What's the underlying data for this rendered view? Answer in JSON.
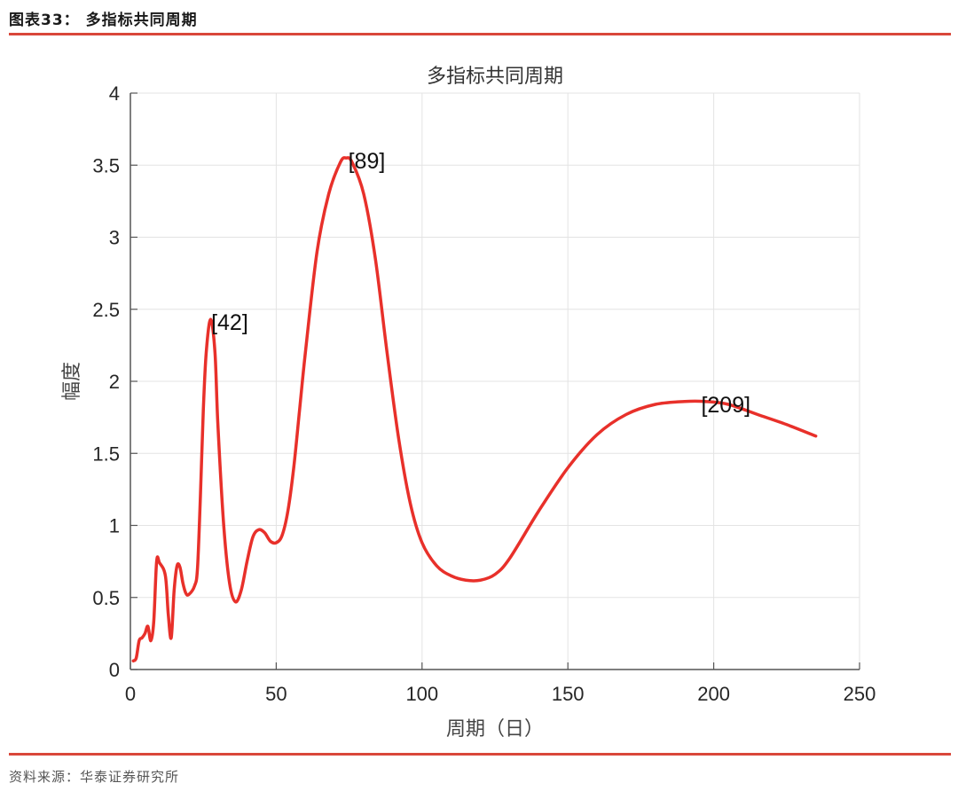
{
  "header": {
    "figure_label": "图表33：  多指标共同周期"
  },
  "footer": {
    "source": "资料来源：华泰证券研究所"
  },
  "colors": {
    "accent_rule": "#d9473a",
    "series": "#e8302a",
    "grid": "#e3e3e3",
    "axis": "#555555"
  },
  "chart_data": {
    "type": "line",
    "title": "多指标共同周期",
    "xlabel": "周期（日）",
    "ylabel": "幅度",
    "xlim": [
      0,
      250
    ],
    "ylim": [
      0,
      4
    ],
    "xticks": [
      0,
      50,
      100,
      150,
      200,
      250
    ],
    "yticks": [
      0,
      0.5,
      1,
      1.5,
      2,
      2.5,
      3,
      3.5,
      4
    ],
    "ytick_labels": [
      "0",
      "0.5",
      "1",
      "1.5",
      "2",
      "2.5",
      "3",
      "3.5",
      "4"
    ],
    "grid": true,
    "legend": null,
    "series": [
      {
        "name": "幅度",
        "color": "#e8302a",
        "x": [
          1,
          2,
          3,
          4,
          5,
          6,
          7,
          8,
          9,
          10,
          12,
          13,
          14,
          15,
          16,
          17,
          18,
          19,
          20,
          22,
          23,
          24,
          25,
          26,
          27.5,
          29,
          30,
          32,
          34,
          36,
          38,
          40,
          42,
          44,
          46,
          48,
          50,
          52,
          54,
          56,
          58,
          60,
          64,
          68,
          72,
          74,
          76,
          80,
          84,
          88,
          92,
          96,
          100,
          105,
          110,
          115,
          120,
          125,
          130,
          140,
          150,
          160,
          170,
          180,
          190,
          197,
          205,
          215,
          225,
          235
        ],
        "values": [
          0.06,
          0.08,
          0.2,
          0.22,
          0.25,
          0.3,
          0.2,
          0.33,
          0.75,
          0.74,
          0.65,
          0.38,
          0.22,
          0.55,
          0.72,
          0.71,
          0.6,
          0.53,
          0.52,
          0.58,
          0.7,
          1.2,
          1.8,
          2.2,
          2.43,
          2.2,
          1.7,
          1.0,
          0.6,
          0.47,
          0.55,
          0.75,
          0.92,
          0.97,
          0.95,
          0.89,
          0.88,
          0.93,
          1.1,
          1.4,
          1.8,
          2.2,
          2.9,
          3.3,
          3.52,
          3.55,
          3.52,
          3.3,
          2.85,
          2.2,
          1.6,
          1.15,
          0.88,
          0.72,
          0.65,
          0.62,
          0.62,
          0.66,
          0.77,
          1.1,
          1.4,
          1.63,
          1.77,
          1.84,
          1.86,
          1.86,
          1.84,
          1.77,
          1.7,
          1.62
        ]
      }
    ],
    "annotations": [
      {
        "text": "[42]",
        "x": 28,
        "y": 2.43
      },
      {
        "text": "[89]",
        "x": 75,
        "y": 3.55
      },
      {
        "text": "[209]",
        "x": 196,
        "y": 1.86
      }
    ]
  }
}
